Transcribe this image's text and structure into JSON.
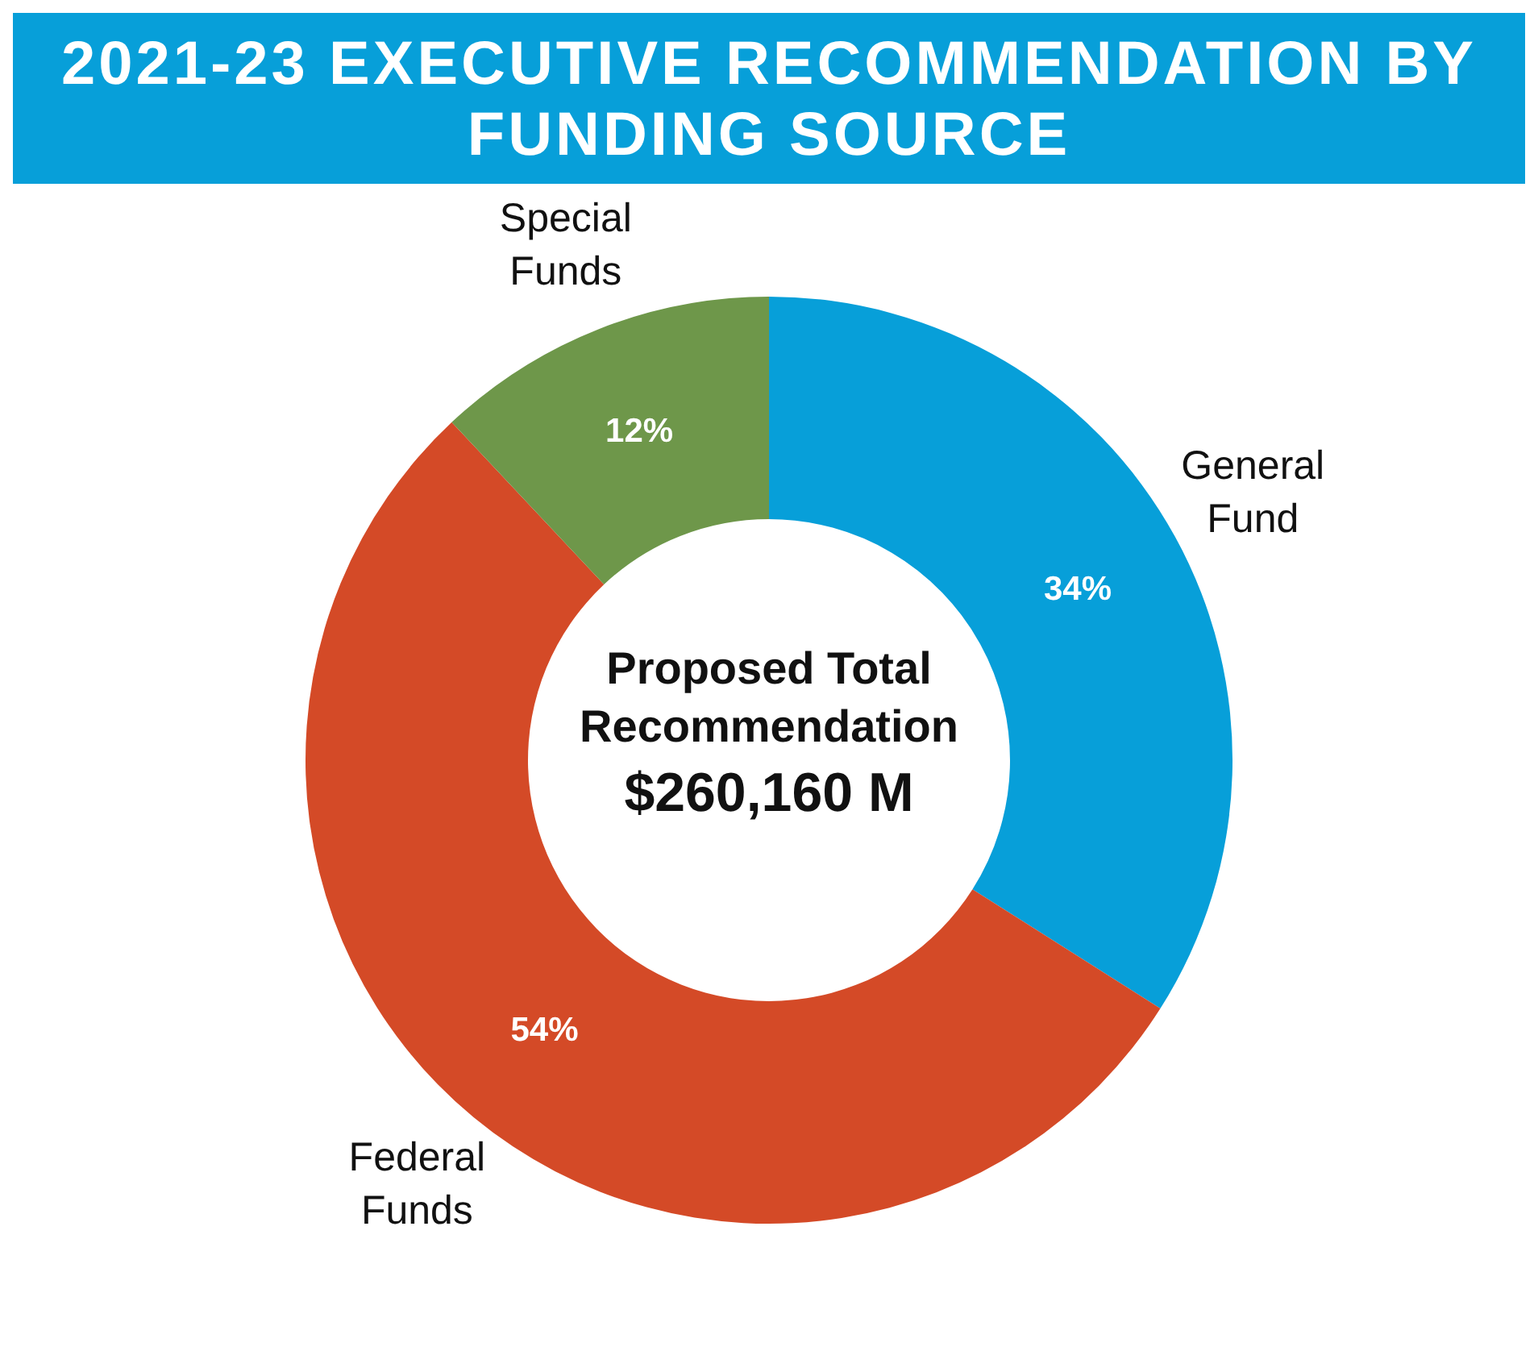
{
  "chart_data": {
    "type": "donut",
    "title": "2021-23 EXECUTIVE RECOMMENDATION BY FUNDING SOURCE",
    "categories": [
      "General Fund",
      "Federal Funds",
      "Special Funds"
    ],
    "values": [
      34,
      54,
      12
    ],
    "colors": [
      "#079fd9",
      "#d44a27",
      "#6e974a"
    ],
    "value_labels": [
      "34%",
      "54%",
      "12%"
    ],
    "annotations": [
      "Proposed Total Recommendation",
      "$260,160 M"
    ]
  }
}
